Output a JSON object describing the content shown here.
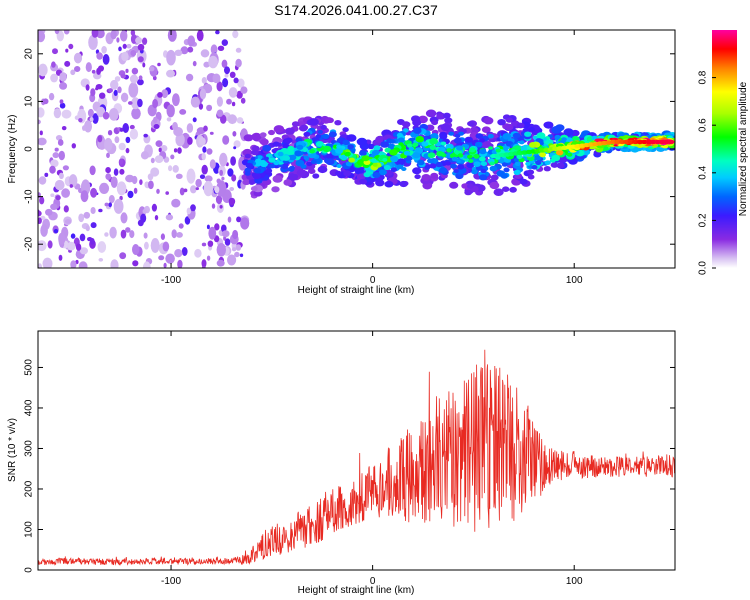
{
  "title": "S174.2026.041.00.27.C37",
  "chart_data": [
    {
      "type": "heatmap",
      "name": "spectrogram",
      "xlabel": "Height of straight line (km)",
      "ylabel": "Frequency (Hz)",
      "xlim": [
        -166,
        150
      ],
      "ylim": [
        -25,
        25
      ],
      "xticks": [
        -100,
        0,
        100
      ],
      "xtick_labels": [
        "-100",
        "0",
        "100"
      ],
      "yticks": [
        -20,
        -10,
        0,
        10,
        20
      ],
      "ytick_labels": [
        "-20",
        "-10",
        "0",
        "10",
        "20"
      ],
      "noise_region_x": [
        -166,
        -63
      ],
      "ridge": {
        "x": [
          -63,
          -50,
          -40,
          -30,
          -20,
          -10,
          0,
          10,
          20,
          30,
          40,
          50,
          60,
          70,
          80,
          90,
          100,
          110,
          120,
          130,
          140,
          150
        ],
        "freq": [
          -4,
          -2.5,
          -1,
          0.5,
          0.5,
          -2,
          -3,
          -1,
          0.5,
          0,
          -1,
          -1.5,
          -1.5,
          -1,
          -0.5,
          0,
          0.5,
          1,
          1.5,
          1.5,
          1.5,
          1.5
        ],
        "amplitude": [
          0.3,
          0.35,
          0.4,
          0.45,
          0.45,
          0.55,
          0.6,
          0.5,
          0.5,
          0.45,
          0.45,
          0.45,
          0.45,
          0.5,
          0.55,
          0.65,
          0.75,
          0.8,
          0.85,
          0.9,
          0.95,
          0.95
        ],
        "spread_hz": [
          4,
          4,
          4,
          4,
          4,
          3,
          3,
          4,
          5,
          5,
          5,
          5,
          5,
          5,
          4,
          3,
          2,
          1.5,
          1,
          1,
          1,
          1
        ]
      },
      "colorbar": {
        "label": "Normalized spectral amplitude",
        "range": [
          0,
          1
        ],
        "ticks": [
          0,
          0.2,
          0.4,
          0.6,
          0.8
        ],
        "tick_labels": [
          "0.0",
          "0.2",
          "0.4",
          "0.6",
          "0.8"
        ],
        "colormap": "rainbow"
      }
    },
    {
      "type": "line",
      "name": "snr",
      "series": [
        {
          "name": "SNR",
          "color": "#e82a22",
          "x": [
            -166,
            -150,
            -130,
            -110,
            -90,
            -70,
            -62,
            -55,
            -45,
            -35,
            -25,
            -15,
            -5,
            5,
            15,
            25,
            35,
            45,
            55,
            65,
            75,
            85,
            95,
            105,
            115,
            125,
            135,
            150
          ],
          "envelope": [
            20,
            22,
            20,
            22,
            21,
            22,
            25,
            60,
            80,
            100,
            130,
            160,
            180,
            210,
            230,
            250,
            270,
            280,
            300,
            300,
            290,
            250,
            260,
            255,
            255,
            255,
            255,
            258
          ],
          "jitter": [
            8,
            8,
            8,
            8,
            8,
            8,
            12,
            35,
            45,
            50,
            60,
            60,
            60,
            80,
            110,
            140,
            160,
            190,
            230,
            200,
            150,
            60,
            35,
            30,
            25,
            25,
            25,
            30
          ]
        }
      ],
      "xlabel": "Height of straight line (km)",
      "ylabel": "SNR (10 * v/v)",
      "xlim": [
        -166,
        150
      ],
      "ylim": [
        0,
        590
      ],
      "xticks": [
        -100,
        0,
        100
      ],
      "xtick_labels": [
        "-100",
        "0",
        "100"
      ],
      "yticks": [
        0,
        100,
        200,
        300,
        400,
        500
      ],
      "ytick_labels": [
        "0",
        "100",
        "200",
        "300",
        "400",
        "500"
      ]
    }
  ]
}
